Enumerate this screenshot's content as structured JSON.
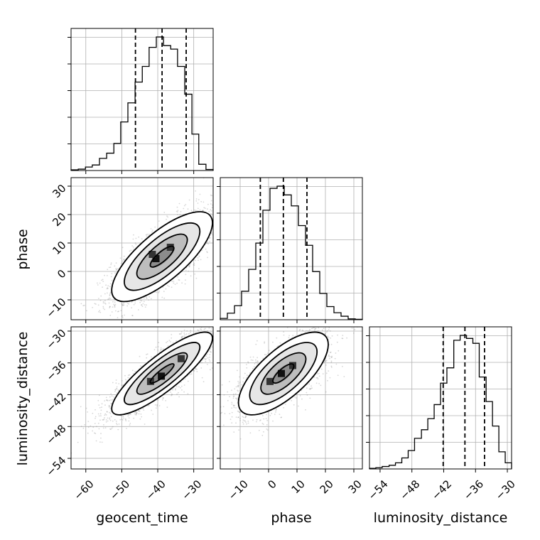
{
  "chart_data": {
    "type": "corner",
    "parameters": [
      "geocent_time",
      "phase",
      "luminosity_distance"
    ],
    "axes": {
      "geocent_time": {
        "ticks": [
          -60,
          -50,
          -40,
          -30
        ],
        "tick_labels": [
          "−60",
          "−50",
          "−40",
          "−30"
        ]
      },
      "phase": {
        "ticks": [
          -10,
          0,
          10,
          20,
          30
        ],
        "tick_labels": [
          "−10",
          "0",
          "10",
          "20",
          "30"
        ]
      },
      "luminosity_distance": {
        "ticks": [
          -54,
          -48,
          -42,
          -36,
          -30
        ],
        "tick_labels": [
          "−54",
          "−48",
          "−42",
          "−36",
          "−30"
        ]
      }
    },
    "grid": true,
    "histograms": [
      {
        "parameter": "geocent_time",
        "bin_edges": [
          -64.1,
          -62.1,
          -60.1,
          -58.2,
          -56.2,
          -54.2,
          -52.2,
          -50.3,
          -48.3,
          -46.3,
          -44.3,
          -42.4,
          -40.4,
          -38.4,
          -36.4,
          -34.5,
          -32.5,
          -30.5,
          -28.6,
          -26.6,
          -24.6
        ],
        "counts": [
          0.2,
          0.4,
          1.0,
          1.6,
          3.5,
          5.0,
          7.8,
          14.0,
          19.5,
          25.5,
          30.0,
          35.5,
          38.5,
          36.0,
          35.0,
          30.0,
          22.0,
          10.5,
          1.8,
          0.3
        ],
        "quantiles": [
          -46.2,
          -38.8,
          -32.1
        ]
      },
      {
        "parameter": "phase",
        "bin_edges": [
          -17.0,
          -14.5,
          -12.0,
          -9.5,
          -7.0,
          -4.5,
          -2.0,
          0.5,
          3.0,
          5.5,
          8.0,
          10.5,
          13.0,
          15.5,
          18.0,
          20.5,
          23.0,
          25.5,
          28.0,
          30.5,
          33.0
        ],
        "counts": [
          0.3,
          1.5,
          3.2,
          6.5,
          11.5,
          17.5,
          25.0,
          30.0,
          30.5,
          28.5,
          26.0,
          21.5,
          17.0,
          11.0,
          6.0,
          3.0,
          1.6,
          0.8,
          0.2,
          0.1
        ],
        "quantiles": [
          -2.9,
          5.2,
          13.5
        ]
      },
      {
        "parameter": "luminosity_distance",
        "bin_edges": [
          -56.0,
          -54.8,
          -53.6,
          -52.3,
          -51.1,
          -49.9,
          -48.7,
          -47.5,
          -46.2,
          -45.0,
          -43.8,
          -42.6,
          -41.4,
          -40.1,
          -38.9,
          -37.7,
          -36.5,
          -35.3,
          -34.0,
          -32.8,
          -31.6,
          -30.4,
          -29.2
        ],
        "counts": [
          0.1,
          0.2,
          0.4,
          0.6,
          1.0,
          1.8,
          3.0,
          5.0,
          6.4,
          8.2,
          10.5,
          14.0,
          16.5,
          21.0,
          21.8,
          21.3,
          20.5,
          15.0,
          11.0,
          7.0,
          2.8,
          1.0
        ],
        "quantiles": [
          -42.1,
          -38.0,
          -34.3
        ]
      }
    ],
    "pairs": [
      {
        "x": "geocent_time",
        "y": "phase",
        "correlation": 0.75,
        "center": [
          -38.8,
          5.2
        ],
        "sigma": [
          7.0,
          7.9
        ],
        "peak_cells": [
          [
            -40.5,
            4.5
          ],
          [
            -36.5,
            8.5
          ],
          [
            -41.5,
            6.0
          ]
        ]
      },
      {
        "x": "geocent_time",
        "y": "luminosity_distance",
        "correlation": 0.85,
        "center": [
          -38.8,
          -38.0
        ],
        "sigma": [
          7.0,
          3.9
        ],
        "peak_cells": [
          [
            -39.0,
            -38.5
          ],
          [
            -33.5,
            -35.2
          ],
          [
            -42.0,
            -39.5
          ]
        ]
      },
      {
        "x": "phase",
        "y": "luminosity_distance",
        "correlation": 0.7,
        "center": [
          5.2,
          -38.0
        ],
        "sigma": [
          7.9,
          3.9
        ],
        "peak_cells": [
          [
            4.5,
            -38.0
          ],
          [
            0.5,
            -39.5
          ],
          [
            8.5,
            -36.5
          ]
        ]
      }
    ]
  }
}
